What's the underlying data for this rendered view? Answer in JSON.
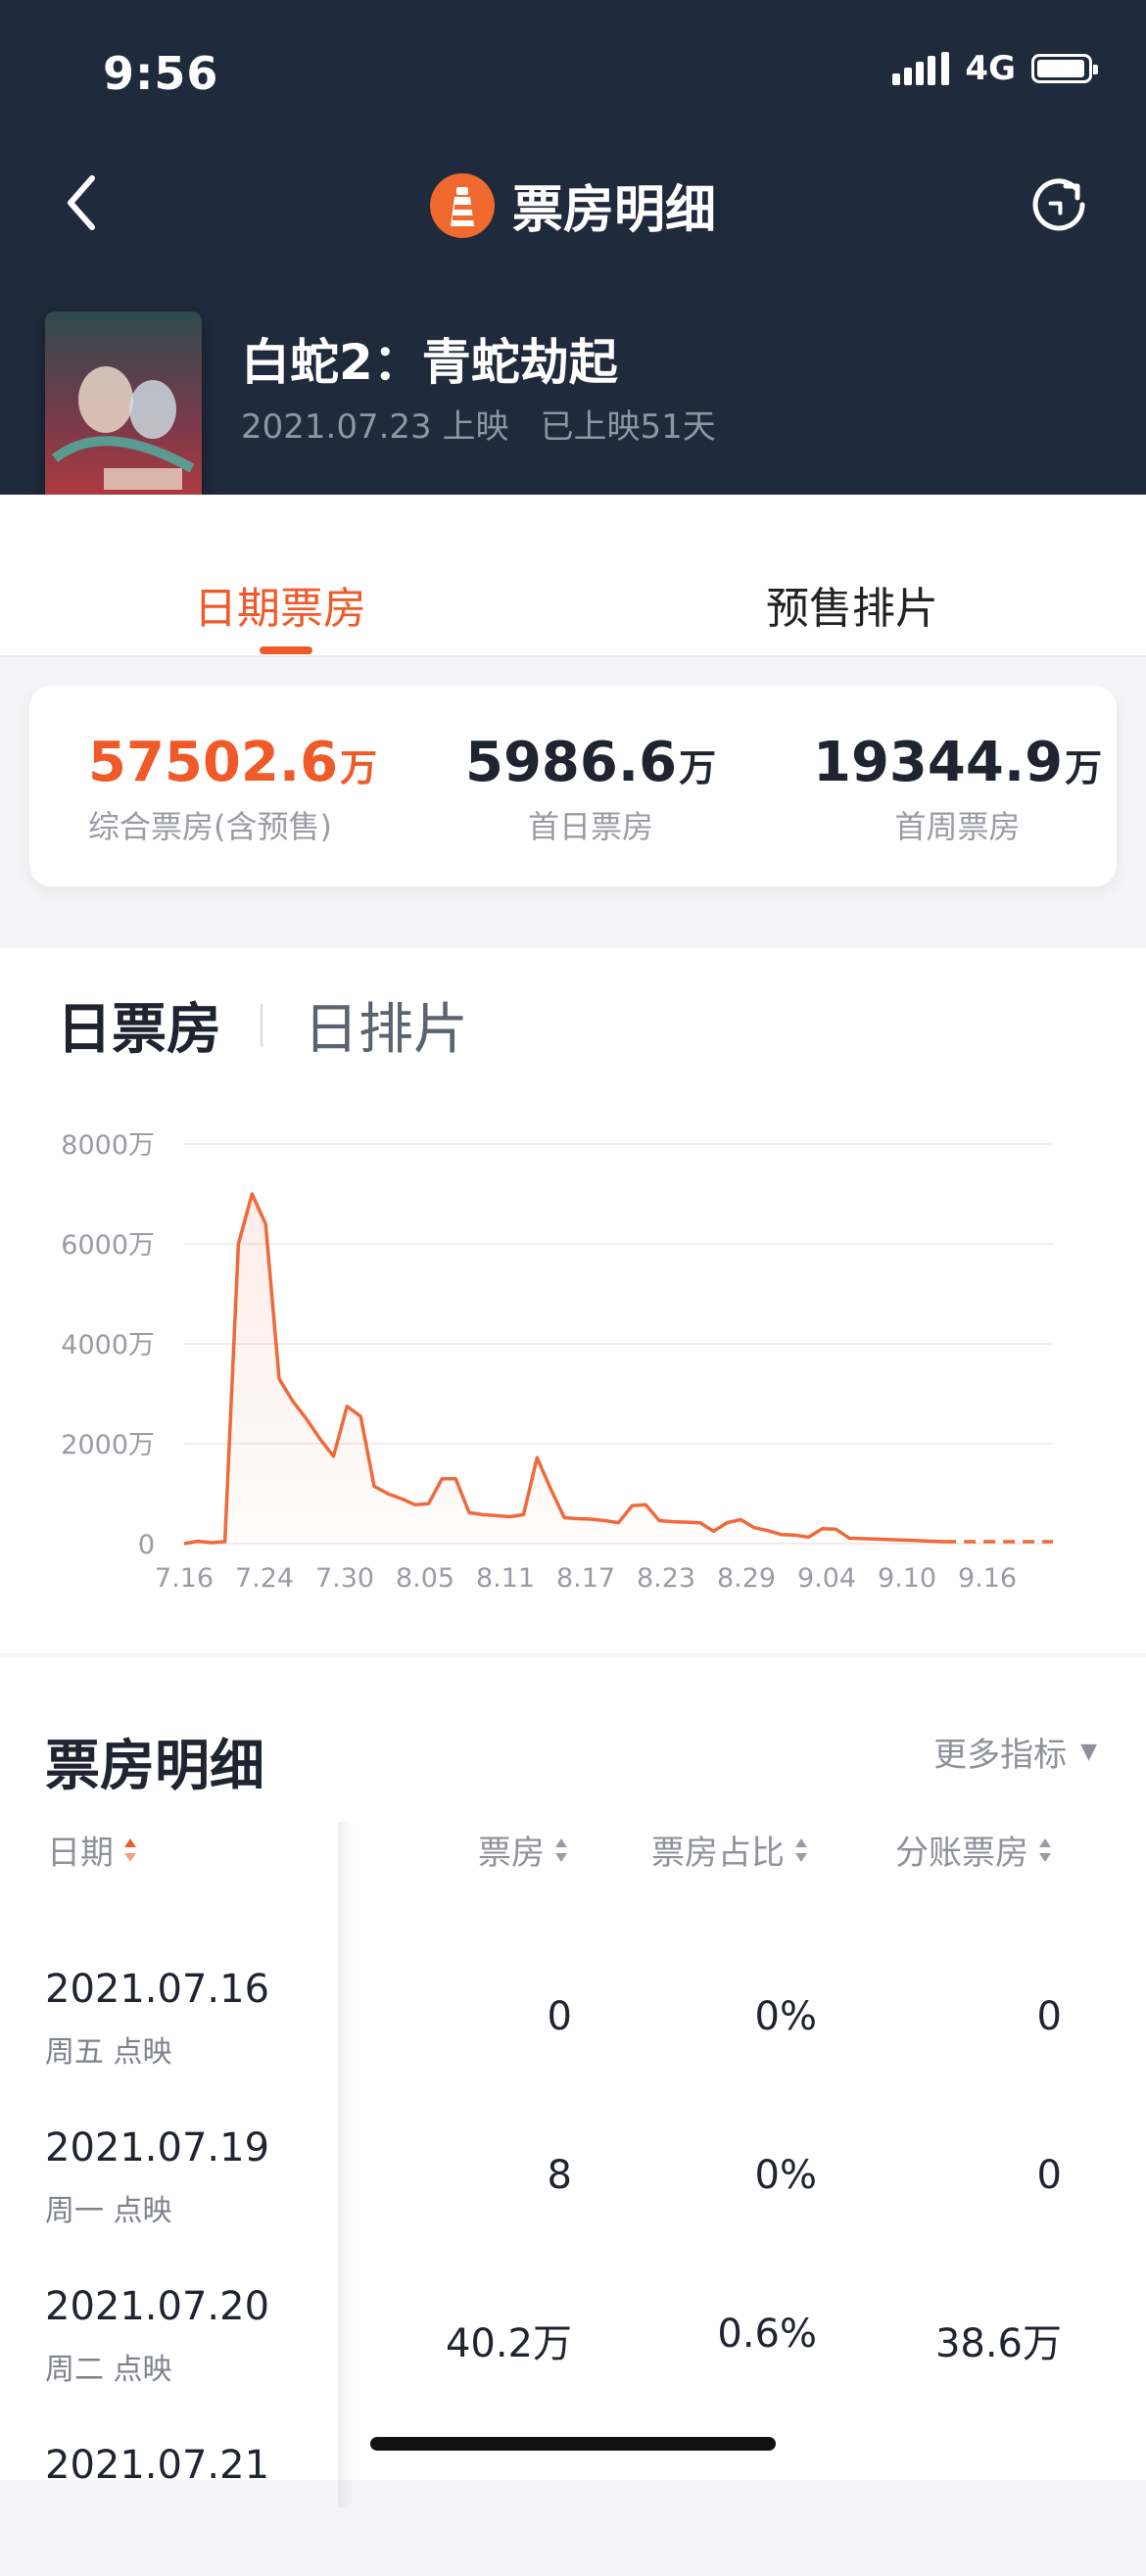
{
  "status_bar": {
    "time": "9:56",
    "network": "4G"
  },
  "nav": {
    "title": "票房明细"
  },
  "movie": {
    "name": "白蛇2：青蛇劫起",
    "release": "2021.07.23 上映",
    "days": "已上映51天"
  },
  "tabs": [
    "日期票房",
    "预售排片"
  ],
  "stats": [
    {
      "value": "57502.6",
      "unit": "万",
      "label": "综合票房(含预售)"
    },
    {
      "value": "5986.6",
      "unit": "万",
      "label": "首日票房"
    },
    {
      "value": "19344.9",
      "unit": "万",
      "label": "首周票房"
    }
  ],
  "chart_tabs": [
    "日票房",
    "日排片"
  ],
  "chart_data": {
    "type": "line",
    "ylim": [
      0,
      8000
    ],
    "y_ticks": [
      "0",
      "2000万",
      "4000万",
      "6000万",
      "8000万"
    ],
    "x_ticks": [
      "7.16",
      "7.24",
      "7.30",
      "8.05",
      "8.11",
      "8.17",
      "8.23",
      "8.29",
      "9.04",
      "9.10",
      "9.16"
    ],
    "grid": true,
    "series": [
      {
        "values": [
          0,
          50,
          20,
          40,
          6000,
          7000,
          6400,
          3300,
          2850,
          2500,
          2100,
          1750,
          2750,
          2550,
          1150,
          1000,
          900,
          780,
          800,
          1300,
          1300,
          620,
          580,
          560,
          540,
          580,
          1720,
          1100,
          520,
          500,
          490,
          460,
          420,
          760,
          780,
          460,
          440,
          430,
          420,
          250,
          420,
          480,
          320,
          260,
          180,
          170,
          130,
          300,
          290,
          110,
          100,
          95,
          80,
          70,
          60,
          50,
          40
        ],
        "projected": [
          40,
          40,
          40,
          40,
          40,
          40,
          40,
          40
        ],
        "color": "#f0693a"
      }
    ]
  },
  "detail": {
    "title": "票房明细",
    "more": "更多指标",
    "columns": [
      "日期",
      "票房",
      "票房占比",
      "分账票房"
    ],
    "rows": [
      {
        "date": "2021.07.16",
        "sub": "周五 点映",
        "box": "0",
        "ratio": "0%",
        "split": "0"
      },
      {
        "date": "2021.07.19",
        "sub": "周一 点映",
        "box": "8",
        "ratio": "0%",
        "split": "0"
      },
      {
        "date": "2021.07.20",
        "sub": "周二 点映",
        "box": "40.2万",
        "ratio": "0.6%",
        "split": "38.6万"
      },
      {
        "date": "2021.07.21",
        "sub": "",
        "box": "",
        "ratio": "",
        "split": ""
      }
    ]
  }
}
